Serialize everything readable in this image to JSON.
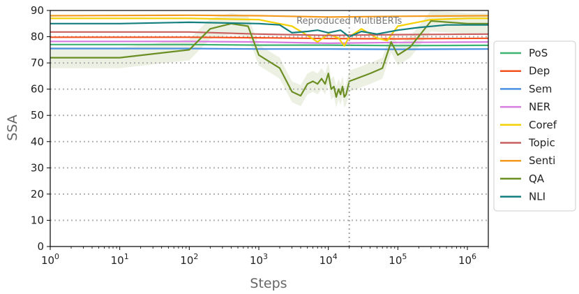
{
  "chart_data": {
    "type": "line",
    "xlabel": "Steps",
    "ylabel": "SSA",
    "xscale": "log",
    "xlim": [
      1,
      2000000
    ],
    "ylim": [
      0,
      90
    ],
    "x_ticks": [
      {
        "value": 1,
        "base": "10",
        "exp": "0"
      },
      {
        "value": 10,
        "base": "10",
        "exp": "1"
      },
      {
        "value": 100,
        "base": "10",
        "exp": "2"
      },
      {
        "value": 1000,
        "base": "10",
        "exp": "3"
      },
      {
        "value": 10000,
        "base": "10",
        "exp": "4"
      },
      {
        "value": 100000,
        "base": "10",
        "exp": "5"
      },
      {
        "value": 1000000,
        "base": "10",
        "exp": "6"
      }
    ],
    "y_ticks": [
      0,
      10,
      20,
      30,
      40,
      50,
      60,
      70,
      80,
      90
    ],
    "grid": "horizontal dotted",
    "legend_position": "outside right",
    "annotation": {
      "text": "Reproduced MultiBERTs",
      "x": 20000
    },
    "series": [
      {
        "name": "PoS",
        "color": "#3cb371",
        "x": [
          1,
          100,
          1000,
          10000,
          100000,
          2000000
        ],
        "y": [
          77.0,
          77.0,
          76.8,
          76.8,
          76.6,
          76.7
        ]
      },
      {
        "name": "Dep",
        "color": "#f4511e",
        "x": [
          1,
          100,
          1000,
          10000,
          100000,
          2000000
        ],
        "y": [
          79.8,
          79.8,
          79.6,
          79.3,
          79.2,
          79.4
        ]
      },
      {
        "name": "Sem",
        "color": "#4a90e2",
        "x": [
          1,
          100,
          1000,
          10000,
          100000,
          2000000
        ],
        "y": [
          75.5,
          75.5,
          75.3,
          75.3,
          75.2,
          75.3
        ]
      },
      {
        "name": "NER",
        "color": "#d77be0",
        "x": [
          1,
          100,
          1000,
          10000,
          100000,
          2000000
        ],
        "y": [
          78.2,
          78.2,
          78.0,
          77.5,
          77.8,
          78.0
        ]
      },
      {
        "name": "Coref",
        "color": "#f5d000",
        "x": [
          1,
          100,
          1000,
          3000,
          5000,
          7000,
          10000,
          14000,
          17000,
          20000,
          30000,
          50000,
          70000,
          100000,
          300000,
          1000000,
          2000000
        ],
        "y": [
          87.0,
          87.0,
          86.5,
          84.0,
          80.5,
          78.0,
          81.0,
          79.5,
          76.5,
          80.0,
          83.0,
          79.5,
          78.5,
          84.0,
          86.5,
          87.0,
          87.0
        ]
      },
      {
        "name": "Topic",
        "color": "#c95f5f",
        "x": [
          1,
          100,
          1000,
          10000,
          100000,
          2000000
        ],
        "y": [
          81.8,
          81.8,
          81.0,
          80.5,
          80.8,
          81.0
        ]
      },
      {
        "name": "Senti",
        "color": "#f39a1e",
        "x": [
          1,
          100,
          1000,
          10000,
          100000,
          2000000
        ],
        "y": [
          88.0,
          88.2,
          88.0,
          87.5,
          87.8,
          88.0
        ]
      },
      {
        "name": "QA",
        "color": "#6b8e23",
        "x": [
          1,
          10,
          100,
          200,
          400,
          700,
          1000,
          2000,
          3000,
          4000,
          5000,
          6000,
          7000,
          8000,
          9000,
          10000,
          11000,
          12000,
          13000,
          14000,
          15000,
          16000,
          17000,
          18000,
          20000,
          40000,
          60000,
          80000,
          100000,
          150000,
          300000,
          1000000,
          2000000
        ],
        "y": [
          72,
          72,
          75,
          83,
          85,
          84,
          73,
          68,
          59,
          57.5,
          62,
          63,
          62,
          64,
          62,
          66,
          60,
          61,
          57,
          60,
          58,
          61,
          57,
          58,
          63,
          66,
          68,
          78,
          73,
          76,
          86,
          85,
          85
        ]
      },
      {
        "name": "NLI",
        "color": "#137e7e",
        "x": [
          1,
          10,
          100,
          1000,
          2000,
          3000,
          5000,
          7000,
          10000,
          15000,
          20000,
          30000,
          50000,
          100000,
          200000,
          500000,
          1000000,
          2000000
        ],
        "y": [
          85.0,
          85.0,
          85.5,
          85.0,
          84.5,
          81.5,
          82.0,
          82.5,
          81.5,
          82.5,
          80.0,
          82.0,
          81.0,
          82.5,
          83.5,
          84.5,
          84.5,
          84.5
        ]
      }
    ]
  }
}
